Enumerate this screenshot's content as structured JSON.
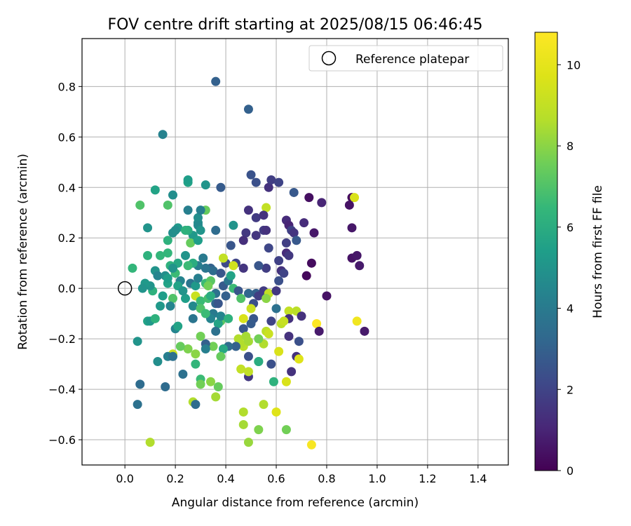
{
  "chart_data": {
    "type": "scatter",
    "title": "FOV centre drift starting at 2025/08/15 06:46:45",
    "xlabel": "Angular distance from reference (arcmin)",
    "ylabel": "Rotation from reference (arcmin)",
    "xlim": [
      -0.17,
      1.52
    ],
    "ylim": [
      -0.7,
      0.99
    ],
    "xticks": [
      "0.0",
      "0.2",
      "0.4",
      "0.6",
      "0.8",
      "1.0",
      "1.2",
      "1.4"
    ],
    "yticks": [
      "−0.6",
      "−0.4",
      "−0.2",
      "0.0",
      "0.2",
      "0.4",
      "0.6",
      "0.8"
    ],
    "grid": true,
    "legend": {
      "position": "top-right",
      "entries": [
        "Reference platepar"
      ]
    },
    "colorbar": {
      "label": "Hours from first FF file",
      "range": [
        0,
        10.8
      ],
      "ticks": [
        "0",
        "2",
        "4",
        "6",
        "8",
        "10"
      ],
      "colormap": "viridis"
    },
    "reference_point": {
      "x": 0.0,
      "y": 0.0,
      "label": "Reference platepar"
    },
    "points": [
      [
        0.36,
        0.82,
        3.0
      ],
      [
        0.49,
        0.71,
        3.0
      ],
      [
        0.15,
        0.61,
        4.3
      ],
      [
        0.57,
        0.4,
        1.4
      ],
      [
        0.58,
        0.43,
        1.8
      ],
      [
        0.61,
        0.42,
        2.0
      ],
      [
        0.5,
        0.45,
        2.5
      ],
      [
        0.52,
        0.42,
        2.4
      ],
      [
        0.67,
        0.38,
        2.7
      ],
      [
        0.73,
        0.36,
        0.4
      ],
      [
        0.78,
        0.34,
        1.0
      ],
      [
        0.9,
        0.36,
        0.3
      ],
      [
        0.91,
        0.36,
        9.6
      ],
      [
        0.89,
        0.33,
        0.5
      ],
      [
        0.56,
        0.32,
        9.0
      ],
      [
        0.49,
        0.31,
        1.4
      ],
      [
        0.52,
        0.28,
        1.7
      ],
      [
        0.55,
        0.29,
        1.4
      ],
      [
        0.64,
        0.27,
        1.2
      ],
      [
        0.65,
        0.25,
        1.0
      ],
      [
        0.71,
        0.26,
        1.2
      ],
      [
        0.9,
        0.24,
        0.6
      ],
      [
        0.52,
        0.21,
        1.5
      ],
      [
        0.55,
        0.23,
        1.7
      ],
      [
        0.56,
        0.23,
        1.4
      ],
      [
        0.48,
        0.22,
        1.6
      ],
      [
        0.66,
        0.23,
        1.9
      ],
      [
        0.67,
        0.22,
        1.5
      ],
      [
        0.75,
        0.22,
        0.6
      ],
      [
        0.47,
        0.19,
        1.3
      ],
      [
        0.68,
        0.19,
        2.7
      ],
      [
        0.64,
        0.18,
        1.8
      ],
      [
        0.57,
        0.16,
        2.1
      ],
      [
        0.64,
        0.14,
        1.2
      ],
      [
        0.65,
        0.13,
        1.6
      ],
      [
        0.42,
        0.17,
        2.6
      ],
      [
        0.9,
        0.12,
        0.5
      ],
      [
        0.92,
        0.13,
        0.6
      ],
      [
        0.93,
        0.09,
        0.7
      ],
      [
        0.74,
        0.1,
        0.3
      ],
      [
        0.72,
        0.05,
        0.2
      ],
      [
        0.8,
        -0.03,
        0.5
      ],
      [
        0.61,
        0.11,
        1.9
      ],
      [
        0.62,
        0.07,
        1.4
      ],
      [
        0.63,
        0.06,
        2.0
      ],
      [
        0.61,
        0.03,
        2.4
      ],
      [
        0.56,
        0.08,
        1.8
      ],
      [
        0.53,
        0.09,
        2.6
      ],
      [
        0.47,
        0.08,
        1.5
      ],
      [
        0.44,
        0.1,
        2.0
      ],
      [
        0.4,
        0.1,
        2.2
      ],
      [
        0.43,
        0.09,
        9.4
      ],
      [
        0.39,
        0.12,
        9.0
      ],
      [
        0.34,
        0.08,
        3.0
      ],
      [
        0.35,
        0.07,
        3.4
      ],
      [
        0.38,
        0.06,
        2.6
      ],
      [
        0.32,
        0.08,
        3.8
      ],
      [
        0.29,
        0.09,
        4.1
      ],
      [
        0.27,
        0.1,
        6.0
      ],
      [
        0.25,
        0.09,
        6.6
      ],
      [
        0.21,
        0.1,
        5.8
      ],
      [
        0.24,
        0.13,
        5.0
      ],
      [
        0.27,
        0.21,
        5.2
      ],
      [
        0.31,
        0.12,
        4.0
      ],
      [
        0.26,
        0.18,
        7.4
      ],
      [
        0.29,
        0.19,
        5.4
      ],
      [
        0.25,
        0.23,
        6.0
      ],
      [
        0.21,
        0.24,
        5.2
      ],
      [
        0.19,
        0.22,
        4.8
      ],
      [
        0.2,
        0.23,
        4.8
      ],
      [
        0.17,
        0.19,
        6.2
      ],
      [
        0.17,
        0.14,
        6.4
      ],
      [
        0.14,
        0.13,
        6.4
      ],
      [
        0.18,
        0.09,
        6.2
      ],
      [
        0.2,
        0.06,
        6.6
      ],
      [
        0.09,
        0.13,
        6.2
      ],
      [
        0.12,
        0.07,
        5.0
      ],
      [
        0.13,
        0.05,
        4.4
      ],
      [
        0.16,
        0.05,
        4.8
      ],
      [
        0.17,
        0.02,
        5.6
      ],
      [
        0.22,
        0.03,
        4.4
      ],
      [
        0.26,
        0.02,
        3.8
      ],
      [
        0.28,
        0.01,
        5.2
      ],
      [
        0.29,
        0.04,
        4.2
      ],
      [
        0.32,
        0.02,
        6.6
      ],
      [
        0.34,
        0.03,
        7.2
      ],
      [
        0.33,
        0.01,
        7.6
      ],
      [
        0.36,
        -0.02,
        3.6
      ],
      [
        0.39,
        0.01,
        2.8
      ],
      [
        0.41,
        0.03,
        3.8
      ],
      [
        0.42,
        0.05,
        5.6
      ],
      [
        0.43,
        0.0,
        6.6
      ],
      [
        0.45,
        -0.01,
        2.6
      ],
      [
        0.46,
        -0.04,
        7.0
      ],
      [
        0.49,
        -0.02,
        3.2
      ],
      [
        0.52,
        -0.02,
        3.0
      ],
      [
        0.51,
        -0.06,
        2.4
      ],
      [
        0.5,
        -0.08,
        9.2
      ],
      [
        0.53,
        -0.03,
        1.8
      ],
      [
        0.55,
        -0.01,
        1.7
      ],
      [
        0.57,
        -0.02,
        9.0
      ],
      [
        0.56,
        -0.04,
        8.0
      ],
      [
        0.6,
        -0.01,
        1.6
      ],
      [
        0.6,
        -0.08,
        3.6
      ],
      [
        0.65,
        -0.09,
        9.0
      ],
      [
        0.68,
        -0.09,
        8.8
      ],
      [
        0.7,
        -0.11,
        1.4
      ],
      [
        0.65,
        -0.12,
        1.4
      ],
      [
        0.62,
        -0.14,
        8.8
      ],
      [
        0.63,
        -0.13,
        9.1
      ],
      [
        0.58,
        -0.13,
        2.0
      ],
      [
        0.51,
        -0.12,
        2.6
      ],
      [
        0.5,
        -0.14,
        2.8
      ],
      [
        0.47,
        -0.12,
        9.6
      ],
      [
        0.47,
        -0.16,
        2.6
      ],
      [
        0.56,
        -0.17,
        8.8
      ],
      [
        0.57,
        -0.18,
        9.2
      ],
      [
        0.65,
        -0.19,
        1.4
      ],
      [
        0.76,
        -0.14,
        10.8
      ],
      [
        0.77,
        -0.17,
        0.7
      ],
      [
        0.92,
        -0.13,
        10.4
      ],
      [
        0.95,
        -0.17,
        0.7
      ],
      [
        0.69,
        -0.21,
        2.4
      ],
      [
        0.55,
        -0.22,
        8.6
      ],
      [
        0.61,
        -0.25,
        9.6
      ],
      [
        0.68,
        -0.27,
        1.4
      ],
      [
        0.69,
        -0.28,
        9.8
      ],
      [
        0.66,
        -0.33,
        1.4
      ],
      [
        0.58,
        -0.3,
        2.4
      ],
      [
        0.53,
        -0.29,
        6.0
      ],
      [
        0.49,
        -0.27,
        2.4
      ],
      [
        0.47,
        -0.23,
        8.8
      ],
      [
        0.46,
        -0.22,
        8.6
      ],
      [
        0.45,
        -0.2,
        8.6
      ],
      [
        0.48,
        -0.19,
        8.4
      ],
      [
        0.44,
        -0.23,
        3.0
      ],
      [
        0.41,
        -0.23,
        3.4
      ],
      [
        0.39,
        -0.24,
        5.8
      ],
      [
        0.38,
        -0.27,
        7.4
      ],
      [
        0.35,
        -0.23,
        7.6
      ],
      [
        0.3,
        -0.19,
        7.6
      ],
      [
        0.32,
        -0.22,
        3.0
      ],
      [
        0.32,
        -0.24,
        4.2
      ],
      [
        0.28,
        -0.26,
        8.0
      ],
      [
        0.25,
        -0.24,
        7.8
      ],
      [
        0.22,
        -0.23,
        7.4
      ],
      [
        0.19,
        -0.26,
        9.2
      ],
      [
        0.17,
        -0.27,
        4.2
      ],
      [
        0.19,
        -0.27,
        3.6
      ],
      [
        0.13,
        -0.29,
        4.8
      ],
      [
        0.23,
        -0.34,
        3.6
      ],
      [
        0.28,
        -0.3,
        6.4
      ],
      [
        0.3,
        -0.36,
        6.6
      ],
      [
        0.3,
        -0.38,
        7.6
      ],
      [
        0.34,
        -0.37,
        8.0
      ],
      [
        0.37,
        -0.39,
        7.4
      ],
      [
        0.36,
        -0.43,
        8.4
      ],
      [
        0.27,
        -0.45,
        8.6
      ],
      [
        0.28,
        -0.46,
        3.4
      ],
      [
        0.16,
        -0.39,
        3.4
      ],
      [
        0.06,
        -0.38,
        3.4
      ],
      [
        0.05,
        -0.46,
        3.6
      ],
      [
        0.05,
        -0.21,
        5.0
      ],
      [
        0.09,
        -0.13,
        5.6
      ],
      [
        0.1,
        -0.13,
        5.2
      ],
      [
        0.12,
        -0.12,
        6.2
      ],
      [
        0.14,
        -0.07,
        5.2
      ],
      [
        0.11,
        -0.01,
        6.2
      ],
      [
        0.1,
        0.01,
        5.0
      ],
      [
        0.15,
        -0.03,
        5.4
      ],
      [
        0.19,
        -0.04,
        7.0
      ],
      [
        0.18,
        -0.07,
        4.4
      ],
      [
        0.2,
        -0.16,
        4.4
      ],
      [
        0.21,
        -0.15,
        5.6
      ],
      [
        0.24,
        -0.04,
        5.4
      ],
      [
        0.27,
        -0.07,
        4.6
      ],
      [
        0.28,
        -0.03,
        9.2
      ],
      [
        0.3,
        -0.05,
        6.6
      ],
      [
        0.3,
        -0.08,
        7.0
      ],
      [
        0.33,
        -0.04,
        6.8
      ],
      [
        0.34,
        -0.03,
        6.0
      ],
      [
        0.35,
        -0.1,
        4.0
      ],
      [
        0.36,
        -0.06,
        3.2
      ],
      [
        0.37,
        -0.06,
        2.6
      ],
      [
        0.38,
        -0.13,
        7.2
      ],
      [
        0.37,
        -0.14,
        5.6
      ],
      [
        0.36,
        -0.17,
        3.6
      ],
      [
        0.34,
        -0.12,
        4.4
      ],
      [
        0.32,
        -0.1,
        6.6
      ],
      [
        0.27,
        -0.12,
        3.8
      ],
      [
        0.38,
        -0.11,
        4.4
      ],
      [
        0.41,
        -0.12,
        6.2
      ],
      [
        0.4,
        -0.03,
        3.0
      ],
      [
        0.53,
        -0.2,
        7.6
      ],
      [
        0.49,
        -0.21,
        8.4
      ],
      [
        0.49,
        -0.35,
        1.6
      ],
      [
        0.49,
        -0.33,
        9.0
      ],
      [
        0.46,
        -0.32,
        9.0
      ],
      [
        0.53,
        -0.29,
        6.0
      ],
      [
        0.59,
        -0.37,
        6.2
      ],
      [
        0.64,
        -0.37,
        9.6
      ],
      [
        0.6,
        -0.49,
        9.8
      ],
      [
        0.55,
        -0.46,
        8.6
      ],
      [
        0.47,
        -0.49,
        8.6
      ],
      [
        0.47,
        -0.54,
        8.4
      ],
      [
        0.53,
        -0.56,
        7.8
      ],
      [
        0.64,
        -0.56,
        7.6
      ],
      [
        0.49,
        -0.61,
        8.2
      ],
      [
        0.74,
        -0.62,
        10.6
      ],
      [
        0.1,
        -0.61,
        8.6
      ],
      [
        0.06,
        0.33,
        7.0
      ],
      [
        0.12,
        0.39,
        5.6
      ],
      [
        0.19,
        0.37,
        4.8
      ],
      [
        0.17,
        0.33,
        7.0
      ],
      [
        0.25,
        0.42,
        5.6
      ],
      [
        0.25,
        0.43,
        5.4
      ],
      [
        0.32,
        0.41,
        5.0
      ],
      [
        0.38,
        0.4,
        2.8
      ],
      [
        0.25,
        0.31,
        4.2
      ],
      [
        0.29,
        0.28,
        4.8
      ],
      [
        0.29,
        0.26,
        4.8
      ],
      [
        0.29,
        0.25,
        4.6
      ],
      [
        0.32,
        0.31,
        7.4
      ],
      [
        0.3,
        0.31,
        4.2
      ],
      [
        0.36,
        0.23,
        3.4
      ],
      [
        0.43,
        0.25,
        5.0
      ],
      [
        0.3,
        0.23,
        5.0
      ],
      [
        0.24,
        0.23,
        6.2
      ],
      [
        0.09,
        0.24,
        5.0
      ],
      [
        0.03,
        0.08,
        6.4
      ],
      [
        0.17,
        0.04,
        5.4
      ],
      [
        0.08,
        0.02,
        5.2
      ],
      [
        0.07,
        0.0,
        5.0
      ],
      [
        0.19,
        0.08,
        5.0
      ],
      [
        0.21,
        0.01,
        5.6
      ],
      [
        0.23,
        -0.01,
        5.0
      ]
    ]
  }
}
